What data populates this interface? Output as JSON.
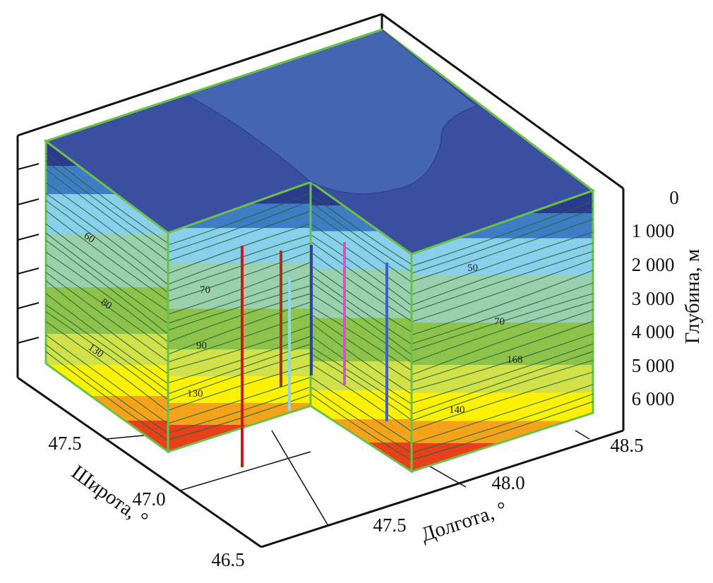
{
  "chart_data": {
    "type": "3d-contour-block",
    "title": "",
    "axes": {
      "depth": {
        "label": "Глубина, м",
        "ticks": [
          "0",
          "1 000",
          "2 000",
          "3 000",
          "4 000",
          "5 000",
          "6 000"
        ]
      },
      "longitude": {
        "label": "Долгота, °",
        "ticks": [
          "47.5",
          "48.0",
          "48.5"
        ]
      },
      "latitude": {
        "label": "Широта, °",
        "ticks": [
          "46.5",
          "47.0",
          "47.5"
        ]
      }
    },
    "contour_labels": {
      "left_face": [
        "60",
        "80",
        "130"
      ],
      "inner_face": [
        "70",
        "90",
        "130"
      ],
      "right_face": [
        "50",
        "70",
        "168",
        "140"
      ]
    },
    "colors": {
      "frame": "#111111",
      "edge": "#6cc04a",
      "contour_line": "#1f6a3a",
      "top_surface": "#3a4fa0",
      "top_region_light": "#4565b2",
      "band_1": "#2b3a8c",
      "band_2": "#3f7cc4",
      "band_3": "#8ad0ec",
      "band_4": "#9ccfae",
      "band_5": "#8fc24a",
      "band_6": "#d2e14a",
      "band_7": "#fff200",
      "band_8": "#f7a21b",
      "band_9": "#e8401a"
    },
    "wells": [
      {
        "color": "#d01818"
      },
      {
        "color": "#9a3b1c"
      },
      {
        "color": "#8fd6ea"
      },
      {
        "color": "#3340a8"
      },
      {
        "color": "#c85cc0"
      },
      {
        "color": "#3d5fd0"
      }
    ]
  }
}
